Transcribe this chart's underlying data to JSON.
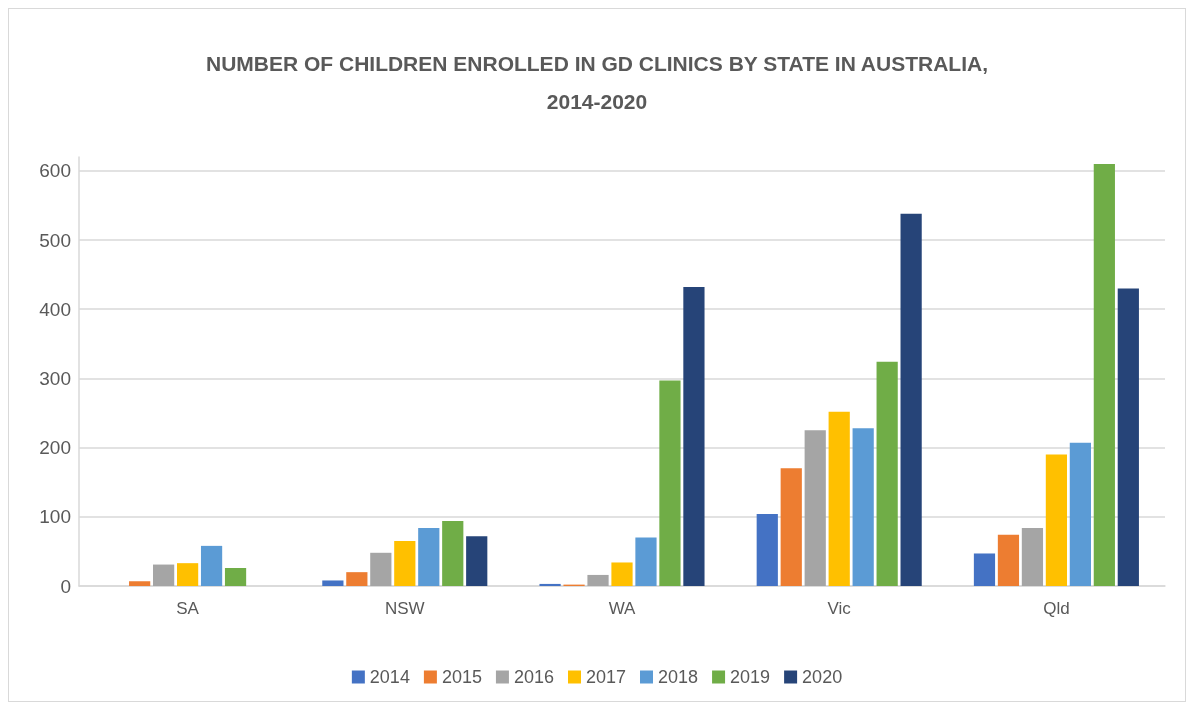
{
  "chart_data": {
    "type": "bar",
    "title": "NUMBER OF CHILDREN ENROLLED IN GD CLINICS BY STATE IN AUSTRALIA,\n2014-2020",
    "categories": [
      "SA",
      "NSW",
      "WA",
      "Vic",
      "Qld"
    ],
    "series": [
      {
        "name": "2014",
        "color": "#4472c4",
        "values": [
          null,
          8,
          3,
          104,
          47
        ]
      },
      {
        "name": "2015",
        "color": "#ed7d31",
        "values": [
          7,
          20,
          2,
          170,
          74
        ]
      },
      {
        "name": "2016",
        "color": "#a5a5a5",
        "values": [
          31,
          48,
          16,
          225,
          84
        ]
      },
      {
        "name": "2017",
        "color": "#ffc000",
        "values": [
          33,
          65,
          34,
          252,
          190
        ]
      },
      {
        "name": "2018",
        "color": "#5b9bd5",
        "values": [
          58,
          84,
          70,
          228,
          207
        ]
      },
      {
        "name": "2019",
        "color": "#70ad47",
        "values": [
          26,
          94,
          297,
          324,
          610
        ]
      },
      {
        "name": "2020",
        "color": "#264478",
        "values": [
          null,
          72,
          432,
          538,
          430
        ]
      }
    ],
    "ylim": [
      0,
      620
    ],
    "yticks": [
      0,
      100,
      200,
      300,
      400,
      500,
      600
    ],
    "grid": "y",
    "legend": "bottom"
  }
}
